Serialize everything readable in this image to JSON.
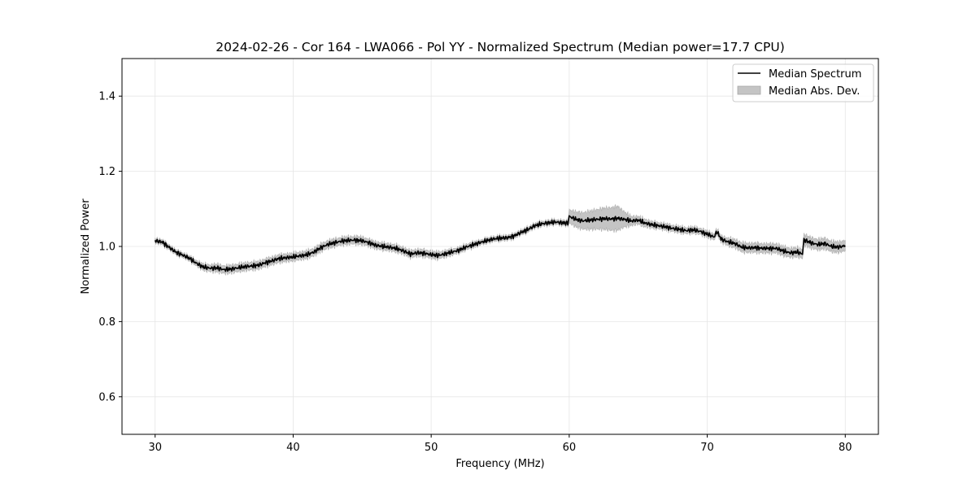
{
  "chart_data": {
    "type": "line",
    "title": "2024-02-26 - Cor 164 - LWA066 - Pol YY - Normalized Spectrum (Median power=17.7 CPU)",
    "xlabel": "Frequency (MHz)",
    "ylabel": "Normalized Power",
    "xlim": [
      27.6,
      82.4
    ],
    "ylim": [
      0.5,
      1.5
    ],
    "xticks": [
      30,
      40,
      50,
      60,
      70,
      80
    ],
    "xtick_labels": [
      "30",
      "40",
      "50",
      "60",
      "70",
      "80"
    ],
    "yticks": [
      0.6,
      0.8,
      1.0,
      1.2,
      1.4
    ],
    "ytick_labels": [
      "0.6",
      "0.8",
      "1.0",
      "1.2",
      "1.4"
    ],
    "grid": true,
    "legend_position": "top-right",
    "series": [
      {
        "name": "Median Spectrum",
        "color": "#000000",
        "x": [
          30.0,
          30.5,
          31.0,
          31.5,
          32.0,
          32.5,
          33.0,
          33.5,
          34.0,
          34.5,
          35.0,
          35.5,
          36.0,
          36.5,
          37.0,
          37.5,
          38.0,
          38.5,
          39.0,
          39.5,
          40.0,
          40.5,
          41.0,
          41.5,
          42.0,
          42.5,
          43.0,
          43.5,
          44.0,
          44.5,
          45.0,
          45.5,
          46.0,
          46.5,
          47.0,
          47.5,
          48.0,
          48.5,
          49.0,
          49.5,
          50.0,
          50.5,
          51.0,
          51.5,
          52.0,
          52.5,
          53.0,
          53.5,
          54.0,
          54.5,
          55.0,
          55.5,
          56.0,
          56.5,
          57.0,
          57.5,
          58.0,
          58.5,
          59.0,
          59.5,
          59.9,
          60.0,
          60.5,
          61.0,
          61.5,
          62.0,
          62.5,
          63.0,
          63.5,
          64.0,
          64.5,
          65.0,
          65.5,
          66.0,
          66.5,
          67.0,
          67.5,
          68.0,
          68.5,
          69.0,
          69.5,
          70.0,
          70.5,
          70.7,
          71.0,
          71.5,
          72.0,
          72.5,
          73.0,
          73.5,
          74.0,
          74.5,
          75.0,
          75.5,
          76.0,
          76.5,
          76.9,
          77.0,
          77.5,
          78.0,
          78.5,
          79.0,
          79.5,
          80.0
        ],
        "values": [
          1.015,
          1.012,
          0.998,
          0.985,
          0.977,
          0.968,
          0.955,
          0.945,
          0.942,
          0.943,
          0.938,
          0.94,
          0.943,
          0.946,
          0.948,
          0.95,
          0.957,
          0.962,
          0.968,
          0.97,
          0.972,
          0.975,
          0.978,
          0.985,
          0.997,
          1.005,
          1.01,
          1.014,
          1.016,
          1.017,
          1.015,
          1.01,
          1.003,
          1.0,
          0.998,
          0.994,
          0.988,
          0.98,
          0.983,
          0.982,
          0.978,
          0.976,
          0.98,
          0.985,
          0.99,
          0.998,
          1.004,
          1.01,
          1.015,
          1.02,
          1.022,
          1.023,
          1.028,
          1.037,
          1.045,
          1.055,
          1.06,
          1.063,
          1.065,
          1.063,
          1.062,
          1.08,
          1.072,
          1.068,
          1.07,
          1.072,
          1.074,
          1.073,
          1.075,
          1.072,
          1.068,
          1.07,
          1.062,
          1.058,
          1.055,
          1.052,
          1.048,
          1.045,
          1.042,
          1.044,
          1.04,
          1.033,
          1.025,
          1.04,
          1.02,
          1.012,
          1.008,
          0.998,
          0.996,
          0.997,
          0.995,
          0.995,
          0.995,
          0.988,
          0.983,
          0.985,
          0.98,
          1.018,
          1.01,
          1.005,
          1.008,
          1.0,
          0.998,
          1.002
        ]
      },
      {
        "name": "Median Abs. Dev.",
        "color": "#c4c4c4",
        "type": "band",
        "x": [
          30.0,
          30.5,
          31.0,
          31.5,
          32.0,
          32.5,
          33.0,
          33.5,
          34.0,
          34.5,
          35.0,
          35.5,
          36.0,
          36.5,
          37.0,
          37.5,
          38.0,
          38.5,
          39.0,
          39.5,
          40.0,
          40.5,
          41.0,
          41.5,
          42.0,
          42.5,
          43.0,
          43.5,
          44.0,
          44.5,
          45.0,
          45.5,
          46.0,
          46.5,
          47.0,
          47.5,
          48.0,
          48.5,
          49.0,
          49.5,
          50.0,
          50.5,
          51.0,
          51.5,
          52.0,
          52.5,
          53.0,
          53.5,
          54.0,
          54.5,
          55.0,
          55.5,
          56.0,
          56.5,
          57.0,
          57.5,
          58.0,
          58.5,
          59.0,
          59.5,
          59.9,
          60.0,
          60.5,
          61.0,
          61.5,
          62.0,
          62.5,
          63.0,
          63.5,
          64.0,
          64.5,
          65.0,
          65.5,
          66.0,
          66.5,
          67.0,
          67.5,
          68.0,
          68.5,
          69.0,
          69.5,
          70.0,
          70.5,
          70.7,
          71.0,
          71.5,
          72.0,
          72.5,
          73.0,
          73.5,
          74.0,
          74.5,
          75.0,
          75.5,
          76.0,
          76.5,
          76.9,
          77.0,
          77.5,
          78.0,
          78.5,
          79.0,
          79.5,
          80.0
        ],
        "dev": [
          0.006,
          0.006,
          0.006,
          0.006,
          0.006,
          0.006,
          0.007,
          0.008,
          0.009,
          0.01,
          0.01,
          0.01,
          0.01,
          0.01,
          0.01,
          0.01,
          0.01,
          0.01,
          0.01,
          0.01,
          0.01,
          0.01,
          0.01,
          0.01,
          0.01,
          0.01,
          0.01,
          0.01,
          0.01,
          0.01,
          0.01,
          0.009,
          0.009,
          0.009,
          0.009,
          0.009,
          0.009,
          0.009,
          0.009,
          0.009,
          0.009,
          0.009,
          0.008,
          0.008,
          0.007,
          0.007,
          0.007,
          0.006,
          0.006,
          0.006,
          0.006,
          0.006,
          0.006,
          0.006,
          0.006,
          0.006,
          0.006,
          0.006,
          0.006,
          0.006,
          0.006,
          0.018,
          0.02,
          0.022,
          0.024,
          0.026,
          0.028,
          0.03,
          0.032,
          0.02,
          0.012,
          0.01,
          0.01,
          0.008,
          0.008,
          0.008,
          0.008,
          0.008,
          0.008,
          0.008,
          0.008,
          0.008,
          0.008,
          0.008,
          0.008,
          0.01,
          0.011,
          0.012,
          0.012,
          0.012,
          0.012,
          0.012,
          0.012,
          0.012,
          0.012,
          0.012,
          0.012,
          0.014,
          0.014,
          0.014,
          0.014,
          0.014,
          0.014,
          0.014
        ]
      }
    ]
  }
}
